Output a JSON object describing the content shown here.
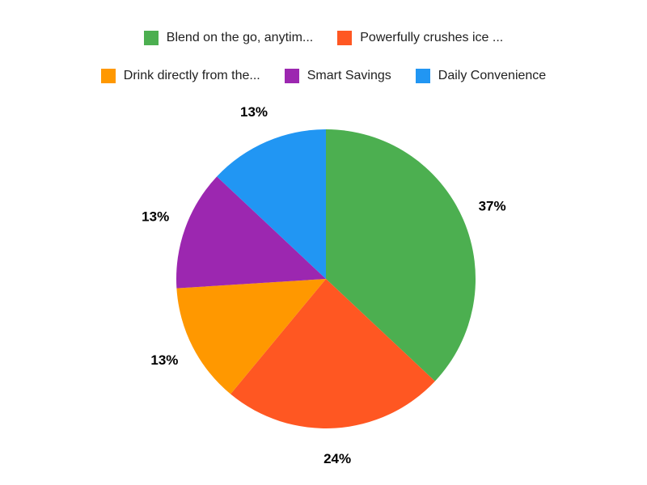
{
  "chart_data": {
    "type": "pie",
    "title": "",
    "labels": [
      "Blend on the go, anytim...",
      "Powerfully crushes ice ...",
      "Drink directly from the...",
      "Smart Savings",
      "Daily Convenience"
    ],
    "values": [
      37,
      24,
      13,
      13,
      13
    ],
    "slice_labels": [
      "37%",
      "24%",
      "13%",
      "13%",
      "13%"
    ],
    "colors": [
      "#4caf50",
      "#ff5722",
      "#ff9800",
      "#9c27b0",
      "#2196f3"
    ],
    "legend_position": "top",
    "legend_rows": [
      [
        0,
        1
      ],
      [
        2,
        3,
        4
      ]
    ],
    "start_angle": 0,
    "direction": "clockwise",
    "label_color": "#000000",
    "legend_text_color": "#212121",
    "background": "#ffffff"
  }
}
